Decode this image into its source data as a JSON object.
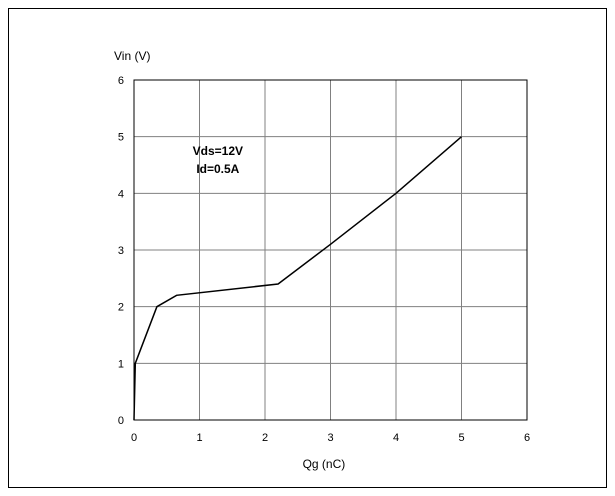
{
  "chart_data": {
    "type": "line",
    "title": "",
    "xlabel": "Qg (nC)",
    "ylabel": "Vin (V)",
    "xlim": [
      0,
      6
    ],
    "ylim": [
      0,
      6
    ],
    "xticks": [
      0,
      1,
      2,
      3,
      4,
      5,
      6
    ],
    "yticks": [
      0,
      1,
      2,
      3,
      4,
      5,
      6
    ],
    "grid": true,
    "annotation_lines": [
      "Vds=12V",
      "Id=0.5A"
    ],
    "series": [
      {
        "x": [
          0,
          0.02,
          0.35,
          0.65,
          2.2,
          3.0,
          4.0,
          5.0
        ],
        "y": [
          0,
          1.0,
          2.0,
          2.2,
          2.4,
          3.1,
          4.0,
          5.0
        ]
      }
    ]
  },
  "colors": {
    "line": "#000000",
    "grid": "#808080",
    "frame": "#000000"
  }
}
